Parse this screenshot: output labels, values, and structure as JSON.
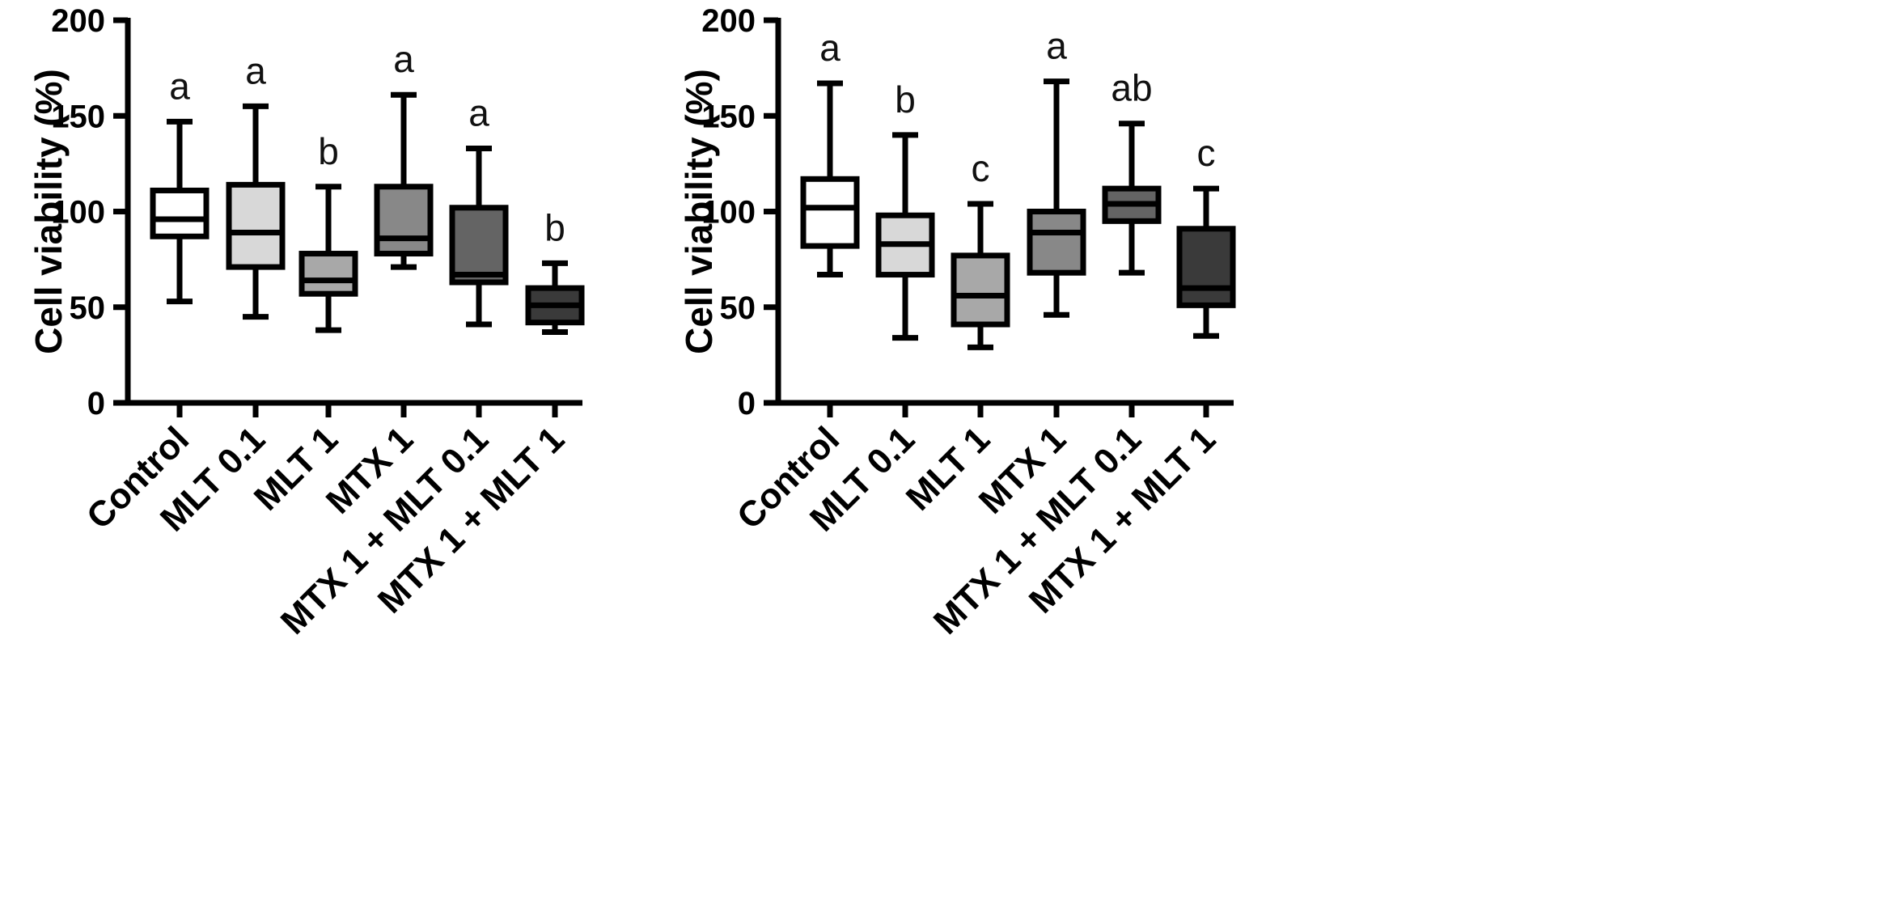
{
  "chart_data": [
    {
      "type": "boxplot",
      "title": "",
      "ylabel": "Cell viability (%)",
      "xlabel": "",
      "ylim": [
        0,
        200
      ],
      "yticks": [
        "0",
        "50",
        "100",
        "150",
        "200"
      ],
      "categories": [
        "Control",
        "MLT 0.1",
        "MLT 1",
        "MTX 1",
        "MTX 1 + MLT 0.1",
        "MTX 1 + MLT 1"
      ],
      "boxes": [
        {
          "min": 53,
          "q1": 87,
          "median": 96,
          "q3": 111,
          "max": 147,
          "fill": "#ffffff",
          "letter": "a"
        },
        {
          "min": 45,
          "q1": 71,
          "median": 89,
          "q3": 114,
          "max": 155,
          "fill": "#d8d8d8",
          "letter": "a"
        },
        {
          "min": 38,
          "q1": 57,
          "median": 64,
          "q3": 78,
          "max": 113,
          "fill": "#a8a8a8",
          "letter": "b"
        },
        {
          "min": 71,
          "q1": 78,
          "median": 86,
          "q3": 113,
          "max": 161,
          "fill": "#888888",
          "letter": "a"
        },
        {
          "min": 41,
          "q1": 63,
          "median": 67,
          "q3": 102,
          "max": 133,
          "fill": "#646464",
          "letter": "a"
        },
        {
          "min": 37,
          "q1": 42,
          "median": 51,
          "q3": 60,
          "max": 73,
          "fill": "#3a3a3a",
          "letter": "b"
        }
      ]
    },
    {
      "type": "boxplot",
      "title": "",
      "ylabel": "Cell viability (%)",
      "xlabel": "",
      "ylim": [
        0,
        200
      ],
      "yticks": [
        "0",
        "50",
        "100",
        "150",
        "200"
      ],
      "categories": [
        "Control",
        "MLT 0.1",
        "MLT 1",
        "MTX 1",
        "MTX 1 + MLT 0.1",
        "MTX 1 + MLT 1"
      ],
      "boxes": [
        {
          "min": 67,
          "q1": 82,
          "median": 102,
          "q3": 117,
          "max": 167,
          "fill": "#ffffff",
          "letter": "a"
        },
        {
          "min": 34,
          "q1": 67,
          "median": 83,
          "q3": 98,
          "max": 140,
          "fill": "#d8d8d8",
          "letter": "b"
        },
        {
          "min": 29,
          "q1": 41,
          "median": 56,
          "q3": 77,
          "max": 104,
          "fill": "#a8a8a8",
          "letter": "c"
        },
        {
          "min": 46,
          "q1": 68,
          "median": 89,
          "q3": 100,
          "max": 168,
          "fill": "#888888",
          "letter": "a"
        },
        {
          "min": 68,
          "q1": 95,
          "median": 104,
          "q3": 112,
          "max": 146,
          "fill": "#646464",
          "letter": "ab"
        },
        {
          "min": 35,
          "q1": 51,
          "median": 60,
          "q3": 91,
          "max": 112,
          "fill": "#3a3a3a",
          "letter": "c"
        }
      ]
    }
  ]
}
